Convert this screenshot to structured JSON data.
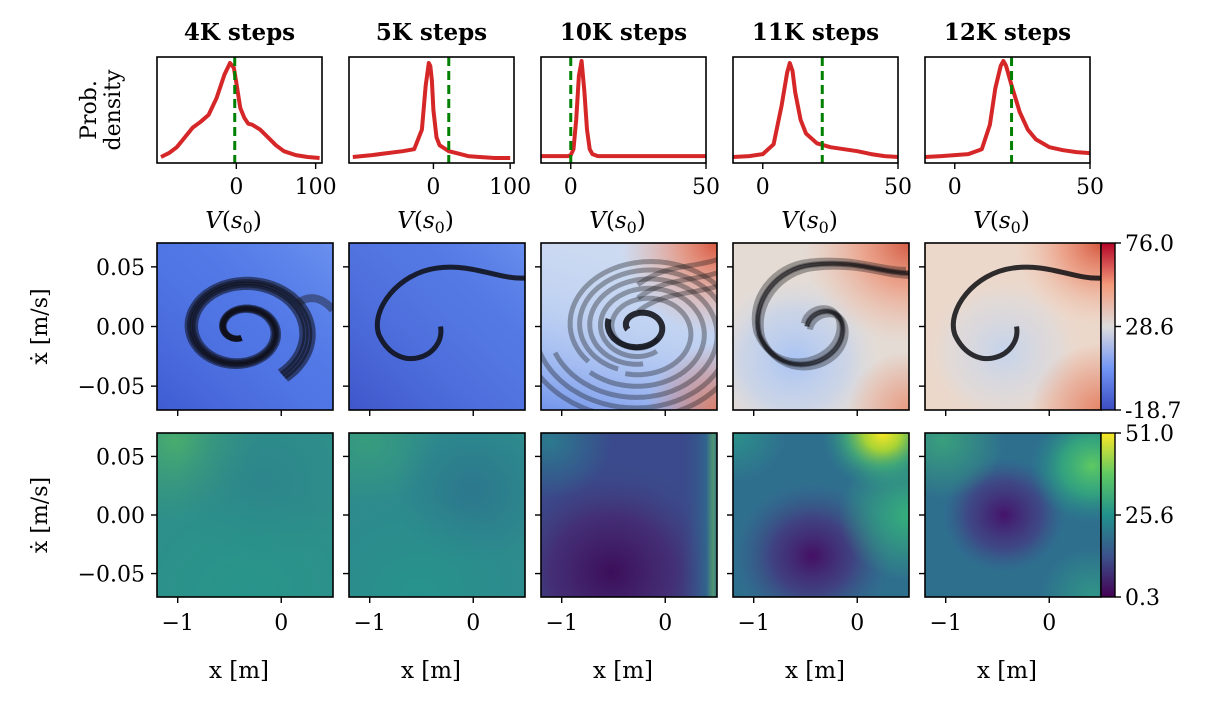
{
  "figure": {
    "colorbar_top": {
      "max_label": "76.0",
      "mid_label": "28.6",
      "min_label": "-18.7"
    },
    "colorbar_bottom": {
      "max_label": "51.0",
      "mid_label": "25.6",
      "min_label": "0.3"
    }
  },
  "chart_data": [
    {
      "type": "line",
      "panel": "density",
      "title": "4K steps",
      "ylabel": "Prob.\ndensity",
      "xlabel": "V(s_0)",
      "xlim": [
        -100,
        108
      ],
      "xticks": [
        0,
        100
      ],
      "vline": -2,
      "series": [
        {
          "x": [
            -95,
            -85,
            -75,
            -65,
            -55,
            -45,
            -35,
            -25,
            -15,
            -8,
            -3,
            0,
            5,
            10,
            15,
            20,
            30,
            40,
            50,
            60,
            75,
            90,
            105
          ],
          "y": [
            0.02,
            0.06,
            0.12,
            0.22,
            0.32,
            0.38,
            0.45,
            0.62,
            0.86,
            0.98,
            0.93,
            0.78,
            0.52,
            0.42,
            0.36,
            0.35,
            0.3,
            0.22,
            0.14,
            0.08,
            0.04,
            0.02,
            0.01
          ]
        }
      ]
    },
    {
      "type": "line",
      "panel": "density",
      "title": "5K steps",
      "xlabel": "V(s_0)",
      "xlim": [
        -110,
        105
      ],
      "xticks": [
        0,
        100
      ],
      "vline": 20,
      "series": [
        {
          "x": [
            -105,
            -80,
            -60,
            -40,
            -25,
            -15,
            -10,
            -6,
            -4,
            -2,
            0,
            4,
            8,
            12,
            20,
            30,
            45,
            60,
            80,
            100
          ],
          "y": [
            0.02,
            0.04,
            0.06,
            0.08,
            0.1,
            0.3,
            0.75,
            0.98,
            0.95,
            0.8,
            0.5,
            0.22,
            0.14,
            0.12,
            0.08,
            0.06,
            0.03,
            0.02,
            0.01,
            0.01
          ]
        }
      ]
    },
    {
      "type": "line",
      "panel": "density",
      "title": "10K steps",
      "xlabel": "V(s_0)",
      "xlim": [
        -11,
        50
      ],
      "xticks": [
        0,
        50
      ],
      "vline": 0,
      "series": [
        {
          "x": [
            -11,
            -5,
            -1,
            0,
            1,
            2,
            3,
            4,
            5,
            6,
            7,
            8,
            10,
            15,
            20,
            30,
            40,
            50
          ],
          "y": [
            0.03,
            0.03,
            0.03,
            0.04,
            0.1,
            0.4,
            0.85,
            1.0,
            0.7,
            0.3,
            0.1,
            0.05,
            0.03,
            0.03,
            0.03,
            0.03,
            0.03,
            0.03
          ]
        }
      ]
    },
    {
      "type": "line",
      "panel": "density",
      "title": "11K steps",
      "xlabel": "V(s_0)",
      "xlim": [
        -11,
        50
      ],
      "xticks": [
        0,
        50
      ],
      "vline": 22,
      "series": [
        {
          "x": [
            -11,
            -5,
            0,
            4,
            7,
            9,
            10,
            11,
            12,
            14,
            16,
            20,
            25,
            30,
            35,
            40,
            45,
            50
          ],
          "y": [
            0.02,
            0.03,
            0.05,
            0.15,
            0.55,
            0.88,
            0.98,
            0.9,
            0.68,
            0.4,
            0.26,
            0.16,
            0.12,
            0.1,
            0.08,
            0.05,
            0.03,
            0.02
          ]
        }
      ]
    },
    {
      "type": "line",
      "panel": "density",
      "title": "12K steps",
      "xlabel": "V(s_0)",
      "xlim": [
        -11,
        50
      ],
      "xticks": [
        0,
        50
      ],
      "vline": 21,
      "series": [
        {
          "x": [
            -11,
            -5,
            0,
            5,
            10,
            13,
            15,
            17,
            18,
            19,
            21,
            24,
            27,
            30,
            35,
            40,
            45,
            50
          ],
          "y": [
            0.02,
            0.03,
            0.04,
            0.05,
            0.1,
            0.35,
            0.72,
            0.95,
            1.0,
            0.95,
            0.75,
            0.48,
            0.3,
            0.2,
            0.12,
            0.09,
            0.07,
            0.06
          ]
        }
      ]
    },
    {
      "type": "heatmap",
      "panel": "value_map",
      "colormap": "coolwarm",
      "ylabel": "ẋ [m/s]",
      "xlim": [
        -1.2,
        0.5
      ],
      "ylim": [
        -0.07,
        0.07
      ],
      "yticks": [
        "0.05",
        "0.00",
        "−0.05"
      ],
      "colorbar_range": [
        -18.7,
        76.0
      ],
      "panels": [
        {
          "title": "4K steps",
          "trajectory": "spiral"
        },
        {
          "title": "5K steps",
          "trajectory": "arc"
        },
        {
          "title": "10K steps",
          "trajectory": "spiral-multi"
        },
        {
          "title": "11K steps",
          "trajectory": "arc-loop"
        },
        {
          "title": "12K steps",
          "trajectory": "arc"
        }
      ]
    },
    {
      "type": "heatmap",
      "panel": "uncertainty_map",
      "colormap": "viridis",
      "xlabel": "x [m]",
      "ylabel": "ẋ [m/s]",
      "xlim": [
        -1.2,
        0.5
      ],
      "ylim": [
        -0.07,
        0.07
      ],
      "xticks": [
        "−1",
        "0"
      ],
      "yticks": [
        "0.05",
        "0.00",
        "−0.05"
      ],
      "colorbar_range": [
        0.3,
        51.0
      ]
    }
  ]
}
